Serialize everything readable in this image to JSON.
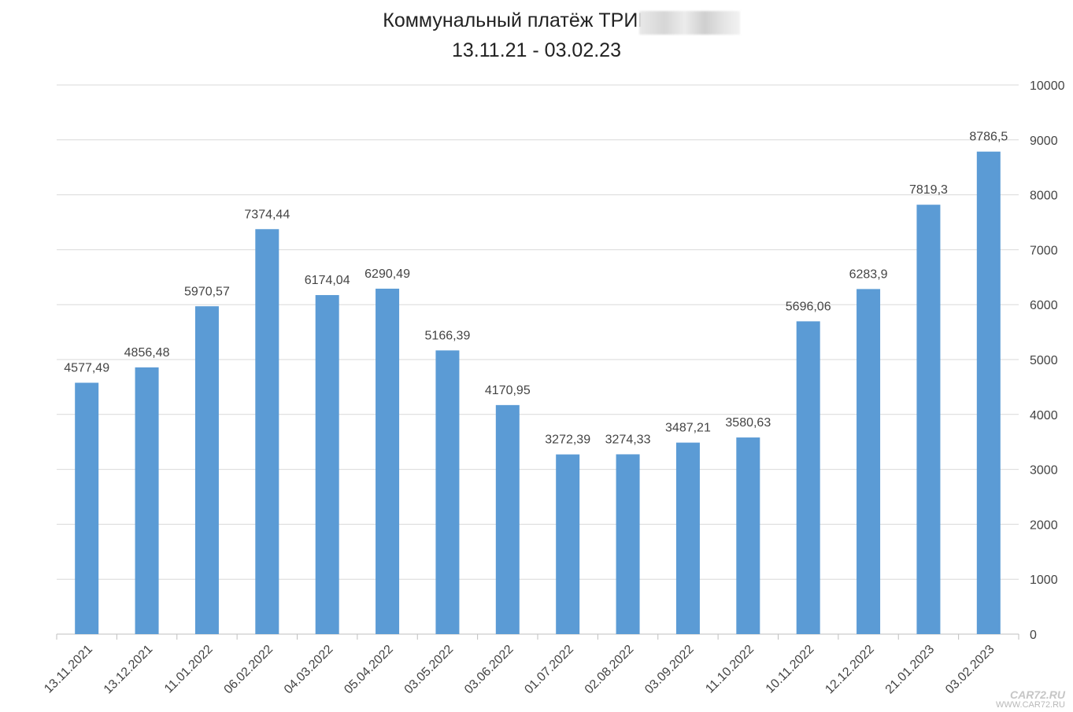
{
  "chart_data": {
    "type": "bar",
    "title": "Коммунальный платёж ТРИЦ, л/с",
    "subtitle": "13.11.21  -  03.02.23",
    "categories": [
      "13.11.2021",
      "13.12.2021",
      "11.01.2022",
      "06.02.2022",
      "04.03.2022",
      "05.04.2022",
      "03.05.2022",
      "03.06.2022",
      "01.07.2022",
      "02.08.2022",
      "03.09.2022",
      "11.10.2022",
      "10.11.2022",
      "12.12.2022",
      "21.01.2023",
      "03.02.2023"
    ],
    "values": [
      4577.49,
      4856.48,
      5970.57,
      7374.44,
      6174.04,
      6290.49,
      5166.39,
      4170.95,
      3272.39,
      3274.33,
      3487.21,
      3580.63,
      5696.06,
      6283.9,
      7819.3,
      8786.5
    ],
    "data_labels": [
      "4577,49",
      "4856,48",
      "5970,57",
      "7374,44",
      "6174,04",
      "6290,49",
      "5166,39",
      "4170,95",
      "3272,39",
      "3274,33",
      "3487,21",
      "3580,63",
      "5696,06",
      "6283,9",
      "7819,3",
      "8786,5"
    ],
    "y_ticks": [
      "0",
      "1000",
      "2000",
      "3000",
      "4000",
      "5000",
      "6000",
      "7000",
      "8000",
      "9000",
      "10000"
    ],
    "ylim": [
      0,
      10000
    ],
    "y_axis_side": "right",
    "grid": true,
    "bar_color": "#5b9bd5",
    "gridline_color": "#d9d9d9",
    "xlabel": "",
    "ylabel": ""
  },
  "watermark": {
    "line1": "CAR72.RU",
    "line2": "WWW.CAR72.RU"
  }
}
